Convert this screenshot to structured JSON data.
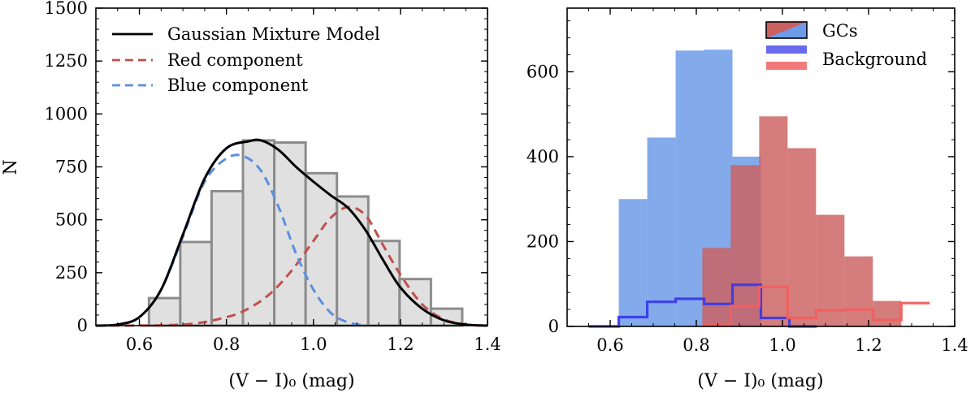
{
  "chart_data": [
    {
      "type": "histogram",
      "panel": "left",
      "xlabel": "(V − I)₀ (mag)",
      "ylabel": "N",
      "xlim": [
        0.5,
        1.4
      ],
      "ylim": [
        0,
        1500
      ],
      "xticks": [
        0.6,
        0.8,
        1.0,
        1.2,
        1.4
      ],
      "xtick_labels": [
        "0.6",
        "0.8",
        "1.0",
        "1.2",
        "1.4"
      ],
      "yticks": [
        0,
        250,
        500,
        750,
        1000,
        1250,
        1500
      ],
      "ytick_labels": [
        "0",
        "250",
        "500",
        "750",
        "1000",
        "1250",
        "1500"
      ],
      "grid": false,
      "legend_position": "top-left",
      "histogram": {
        "bin_edges": [
          0.622,
          0.694,
          0.766,
          0.838,
          0.91,
          0.982,
          1.054,
          1.126,
          1.198,
          1.27,
          1.342
        ],
        "counts": [
          130,
          395,
          635,
          875,
          865,
          720,
          610,
          400,
          220,
          80
        ],
        "fill_color": "#e0e0e0",
        "edge_color": "#8c8c8c"
      },
      "series": [
        {
          "name": "Gaussian Mixture Model",
          "style": "solid",
          "color": "#000000",
          "x": [
            0.5,
            0.55,
            0.6,
            0.65,
            0.7,
            0.75,
            0.8,
            0.85,
            0.88,
            0.92,
            0.96,
            1.0,
            1.04,
            1.08,
            1.12,
            1.16,
            1.2,
            1.25,
            1.3,
            1.35,
            1.4
          ],
          "y": [
            0,
            5,
            40,
            170,
            430,
            695,
            838,
            870,
            875,
            830,
            750,
            680,
            615,
            555,
            450,
            310,
            180,
            80,
            25,
            5,
            0
          ]
        },
        {
          "name": "Red component",
          "style": "dashed",
          "color": "#c0504d",
          "x": [
            0.5,
            0.7,
            0.8,
            0.85,
            0.9,
            0.95,
            1.0,
            1.04,
            1.08,
            1.12,
            1.16,
            1.2,
            1.25,
            1.3,
            1.35,
            1.4
          ],
          "y": [
            0,
            5,
            40,
            80,
            150,
            260,
            400,
            510,
            560,
            520,
            380,
            240,
            100,
            30,
            5,
            0
          ]
        },
        {
          "name": "Blue component",
          "style": "dashed",
          "color": "#5b8fe0",
          "x": [
            0.5,
            0.55,
            0.6,
            0.65,
            0.7,
            0.75,
            0.8,
            0.84,
            0.88,
            0.92,
            0.96,
            1.0,
            1.04,
            1.08,
            1.12
          ],
          "y": [
            0,
            5,
            40,
            170,
            420,
            680,
            790,
            800,
            730,
            560,
            340,
            170,
            60,
            15,
            0
          ]
        }
      ]
    },
    {
      "type": "histogram",
      "panel": "right",
      "xlabel": "(V − I)₀ (mag)",
      "ylabel": "",
      "xlim": [
        0.5,
        1.4
      ],
      "ylim": [
        0,
        750
      ],
      "xticks": [
        0.6,
        0.8,
        1.0,
        1.2,
        1.4
      ],
      "xtick_labels": [
        "0.6",
        "0.8",
        "1.0",
        "1.2",
        "1.4"
      ],
      "yticks": [
        0,
        200,
        400,
        600
      ],
      "ytick_labels": [
        "0",
        "200",
        "400",
        "600"
      ],
      "grid": false,
      "legend_position": "top-right",
      "legend": [
        "GCs",
        "Background"
      ],
      "gc_blue": {
        "name": "GCs (blue)",
        "color": "#6d9be8",
        "bin_edges": [
          0.62,
          0.686,
          0.752,
          0.818,
          0.884,
          0.95,
          1.016
        ],
        "counts": [
          300,
          445,
          650,
          652,
          400,
          0
        ]
      },
      "gc_red": {
        "name": "GCs (red)",
        "color": "#cc5f5f",
        "bin_edges": [
          0.814,
          0.88,
          0.946,
          1.012,
          1.078,
          1.144,
          1.21,
          1.276,
          1.342
        ],
        "counts": [
          185,
          380,
          495,
          420,
          263,
          165,
          60,
          0
        ]
      },
      "blue_bar_overlays": [
        {
          "bin_edges": [
            0.6,
            0.62
          ],
          "count": 0
        }
      ],
      "background_blue": {
        "name": "Background",
        "color": "#3a3ae8",
        "bin_edges": [
          0.55,
          0.62,
          0.686,
          0.752,
          0.818,
          0.884,
          0.95,
          1.016,
          1.08
        ],
        "counts": [
          0,
          22,
          58,
          65,
          53,
          98,
          20,
          0
        ]
      },
      "background_red": {
        "name": "Background",
        "color": "#f06060",
        "bin_edges": [
          0.814,
          0.88,
          0.946,
          1.012,
          1.078,
          1.144,
          1.21,
          1.276,
          1.342
        ],
        "counts": [
          5,
          48,
          93,
          20,
          38,
          40,
          15,
          55
        ]
      }
    }
  ],
  "legend_left": {
    "gmm": "Gaussian Mixture Model",
    "red": "Red component",
    "blue": "Blue component"
  },
  "legend_right": {
    "gcs": "GCs",
    "background": "Background"
  },
  "labels": {
    "left_xlabel": "(V − I)₀ (mag)",
    "right_xlabel": "(V − I)₀ (mag)",
    "left_ylabel": "N"
  }
}
